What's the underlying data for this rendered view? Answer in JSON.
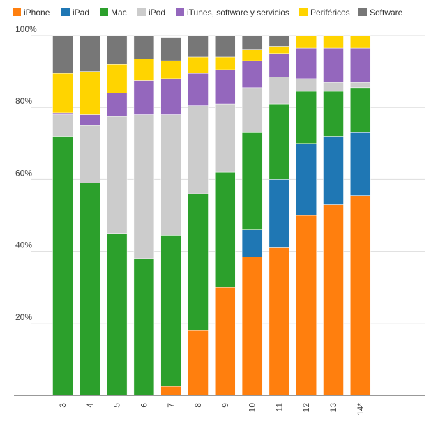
{
  "chart_data": {
    "type": "bar",
    "stacked": true,
    "percent": true,
    "title": "",
    "xlabel": "",
    "ylabel": "",
    "ylim": [
      0,
      100
    ],
    "y_ticks": [
      20,
      40,
      60,
      80,
      100
    ],
    "y_tick_labels": [
      "20%",
      "40%",
      "60%",
      "80%",
      "100%"
    ],
    "legend_position": "top",
    "grid": true,
    "categories": [
      "3",
      "4",
      "5",
      "6",
      "7",
      "8",
      "9",
      "10",
      "11",
      "12",
      "13",
      "14*"
    ],
    "series": [
      {
        "name": "iPhone",
        "color": "#ff7f0e",
        "values": [
          0,
          0,
          0,
          0,
          2.5,
          18,
          30,
          38.5,
          41,
          50,
          53,
          55.5
        ]
      },
      {
        "name": "iPad",
        "color": "#1f77b4",
        "values": [
          0,
          0,
          0,
          0,
          0,
          0,
          0,
          7.5,
          19,
          20,
          19,
          17.5
        ]
      },
      {
        "name": "Mac",
        "color": "#2ca02c",
        "values": [
          72,
          59,
          45,
          38,
          42,
          38,
          32,
          27,
          21,
          14.5,
          12.5,
          12.5
        ]
      },
      {
        "name": "iPod",
        "color": "#cccccc",
        "values": [
          6,
          16,
          32.5,
          40,
          33.5,
          24.5,
          19,
          12.5,
          7.5,
          3.5,
          2.5,
          1.5
        ]
      },
      {
        "name": "iTunes, software y servicios",
        "color": "#9467bd",
        "values": [
          0.5,
          3,
          6.5,
          9.5,
          10,
          9,
          9.5,
          7.5,
          6.5,
          8.5,
          9.5,
          9.5
        ]
      },
      {
        "name": "Periféricos",
        "color": "#ffd400",
        "values": [
          11,
          12,
          8,
          6,
          5,
          4.5,
          3.5,
          3,
          2,
          3.5,
          3.5,
          3.5
        ]
      },
      {
        "name": "Software",
        "color": "#777777",
        "values": [
          10.5,
          10,
          8,
          6.5,
          6.5,
          6,
          6,
          4,
          3,
          0,
          0,
          0
        ]
      }
    ]
  }
}
